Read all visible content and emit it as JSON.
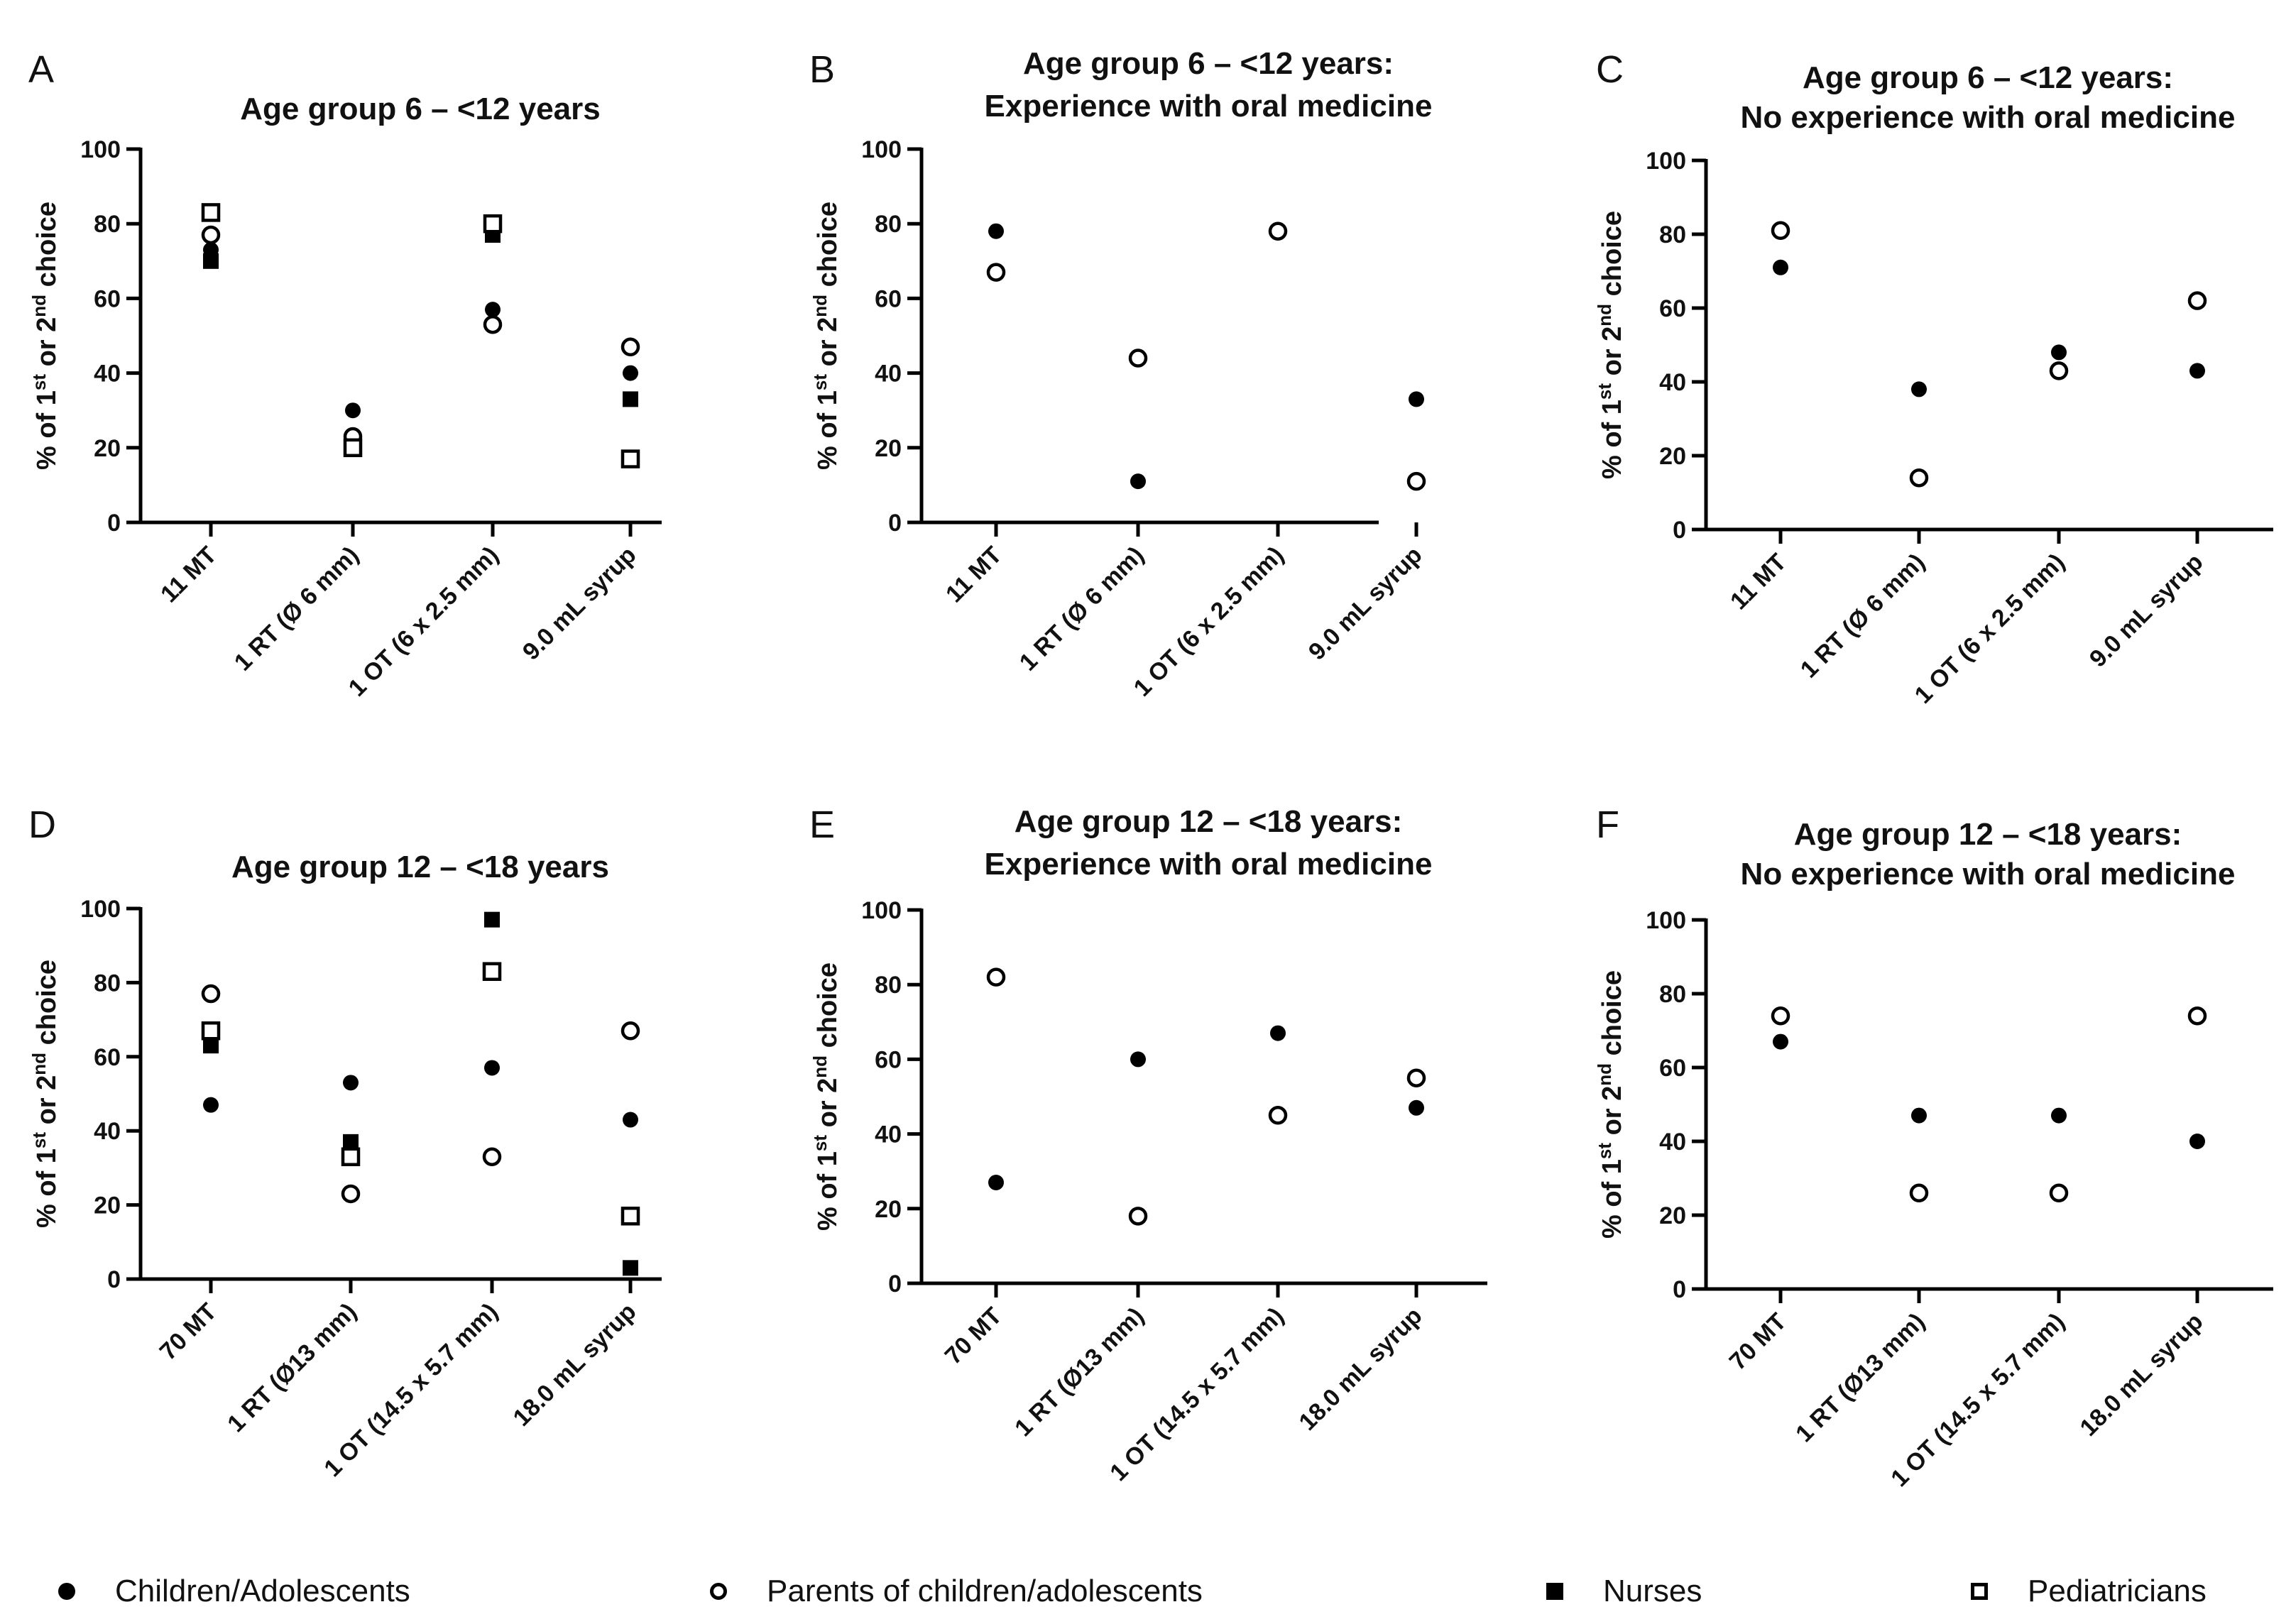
{
  "series_meta": [
    {
      "key": "children",
      "name": "Children/Adolescents",
      "marker": "filled-circle"
    },
    {
      "key": "parents",
      "name": "Parents of children/adolescents",
      "marker": "open-circle"
    },
    {
      "key": "nurses",
      "name": "Nurses",
      "marker": "filled-square"
    },
    {
      "key": "pediatricians",
      "name": "Pediatricians",
      "marker": "open-square"
    }
  ],
  "legend": {
    "children": "Children/Adolescents",
    "parents": "Parents of children/adolescents",
    "nurses": "Nurses",
    "pediatricians": "Pediatricians"
  },
  "y_axis_label": {
    "prefix": "% of 1",
    "sup1": "st",
    "mid": " or 2",
    "sup2": "nd",
    "suffix": " choice"
  },
  "chart_data": [
    {
      "panel": "A",
      "type": "scatter",
      "title": [
        "Age group 6 – <12 years"
      ],
      "categories": [
        "11 MT",
        "1 RT (Ø 6 mm)",
        "1 OT (6 x 2.5 mm)",
        "9.0 mL syrup"
      ],
      "ylim": [
        0,
        100
      ],
      "yticks": [
        0,
        20,
        40,
        60,
        80,
        100
      ],
      "series": [
        {
          "key": "children",
          "values": [
            73,
            30,
            57,
            40
          ]
        },
        {
          "key": "parents",
          "values": [
            77,
            23,
            53,
            47
          ]
        },
        {
          "key": "nurses",
          "values": [
            70,
            20,
            77,
            33
          ]
        },
        {
          "key": "pediatricians",
          "values": [
            83,
            20,
            80,
            17
          ]
        }
      ]
    },
    {
      "panel": "B",
      "type": "scatter",
      "title": [
        "Age group 6 – <12 years:",
        "Experience with oral medicine"
      ],
      "categories": [
        "11 MT",
        "1 RT (Ø 6 mm)",
        "1 OT (6 x 2.5 mm)",
        "9.0 mL syrup"
      ],
      "ylim": [
        0,
        100
      ],
      "yticks": [
        0,
        20,
        40,
        60,
        80,
        100
      ],
      "series": [
        {
          "key": "children",
          "values": [
            78,
            11,
            78,
            33
          ]
        },
        {
          "key": "parents",
          "values": [
            67,
            44,
            78,
            11
          ]
        }
      ]
    },
    {
      "panel": "C",
      "type": "scatter",
      "title": [
        "Age group 6 – <12 years:",
        "No experience with oral medicine"
      ],
      "categories": [
        "11 MT",
        "1 RT (Ø 6 mm)",
        "1 OT (6 x 2.5 mm)",
        "9.0 mL syrup"
      ],
      "ylim": [
        0,
        100
      ],
      "yticks": [
        0,
        20,
        40,
        60,
        80,
        100
      ],
      "series": [
        {
          "key": "children",
          "values": [
            71,
            38,
            48,
            43
          ]
        },
        {
          "key": "parents",
          "values": [
            81,
            14,
            43,
            62
          ]
        }
      ]
    },
    {
      "panel": "D",
      "type": "scatter",
      "title": [
        "Age group 12 – <18 years"
      ],
      "categories": [
        "70 MT",
        "1 RT (Ø13 mm)",
        "1 OT (14.5 x 5.7 mm)",
        "18.0 mL syrup"
      ],
      "ylim": [
        0,
        100
      ],
      "yticks": [
        0,
        20,
        40,
        60,
        80,
        100
      ],
      "series": [
        {
          "key": "children",
          "values": [
            47,
            53,
            57,
            43
          ]
        },
        {
          "key": "parents",
          "values": [
            77,
            23,
            33,
            67
          ]
        },
        {
          "key": "nurses",
          "values": [
            63,
            37,
            97,
            3
          ]
        },
        {
          "key": "pediatricians",
          "values": [
            67,
            33,
            83,
            17
          ]
        }
      ]
    },
    {
      "panel": "E",
      "type": "scatter",
      "title": [
        "Age group 12 – <18 years:",
        "Experience with oral medicine"
      ],
      "categories": [
        "70 MT",
        "1 RT (Ø13 mm)",
        "1 OT (14.5 x 5.7 mm)",
        "18.0 mL syrup"
      ],
      "ylim": [
        0,
        100
      ],
      "yticks": [
        0,
        20,
        40,
        60,
        80,
        100
      ],
      "series": [
        {
          "key": "children",
          "values": [
            27,
            60,
            67,
            47
          ]
        },
        {
          "key": "parents",
          "values": [
            82,
            18,
            45,
            55
          ]
        }
      ]
    },
    {
      "panel": "F",
      "type": "scatter",
      "title": [
        "Age group 12 – <18 years:",
        "No experience with oral medicine"
      ],
      "categories": [
        "70 MT",
        "1 RT (Ø13 mm)",
        "1 OT (14.5 x 5.7 mm)",
        "18.0 mL syrup"
      ],
      "ylim": [
        0,
        100
      ],
      "yticks": [
        0,
        20,
        40,
        60,
        80,
        100
      ],
      "series": [
        {
          "key": "children",
          "values": [
            67,
            47,
            47,
            40
          ]
        },
        {
          "key": "parents",
          "values": [
            74,
            26,
            26,
            74
          ]
        }
      ]
    }
  ]
}
